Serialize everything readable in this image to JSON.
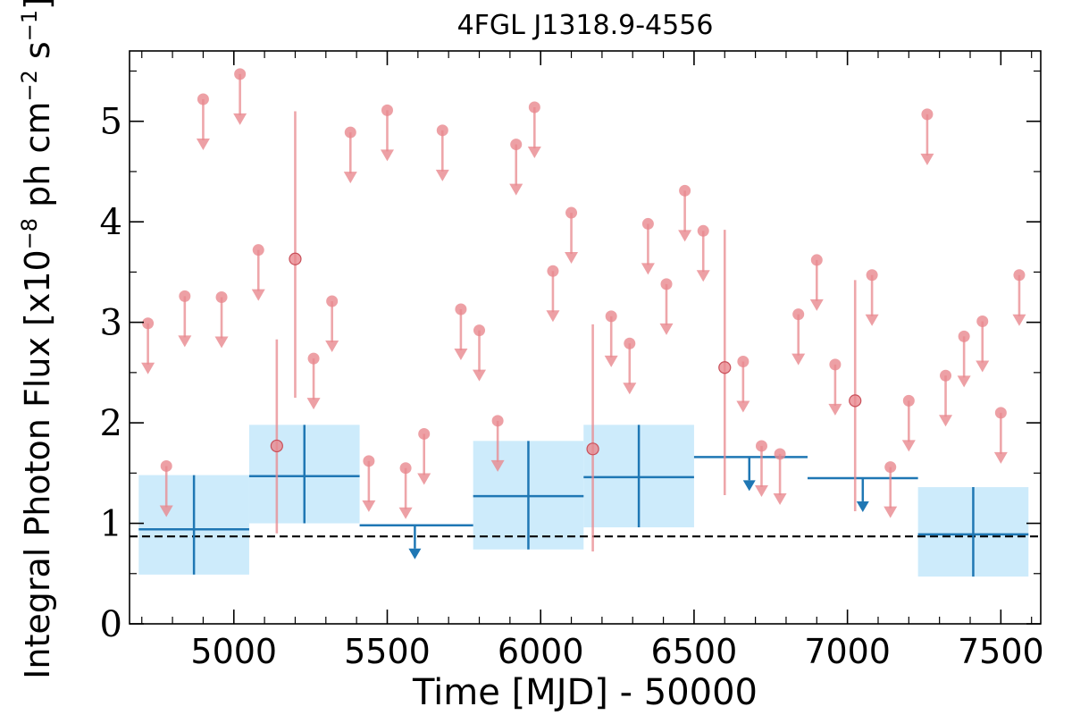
{
  "chart_data": {
    "type": "scatter",
    "title": "4FGL J1318.9-4556",
    "xlabel": "Time [MJD] - 50000",
    "ylabel": "Integral Photon Flux [x10",
    "ylabel_exp1": "−8",
    "ylabel_mid": " ph cm",
    "ylabel_exp2": "−2",
    "ylabel_mid2": " s",
    "ylabel_exp3": "−1",
    "ylabel_end": "]",
    "xlim": [
      4660,
      7630
    ],
    "ylim": [
      0,
      5.7
    ],
    "xticks": [
      5000,
      5500,
      6000,
      6500,
      7000,
      7500
    ],
    "yticks": [
      0,
      1,
      2,
      3,
      4,
      5
    ],
    "grid": false,
    "reference_line": {
      "y": 0.87,
      "style": "dashed",
      "color": "#000000"
    },
    "colors": {
      "short_bin": "#e8888e",
      "long_bin": "#1f77b4",
      "band": "#cdebfb"
    },
    "short_bin_detections": [
      {
        "x": 5140,
        "y": 1.77,
        "ylo": 0.9,
        "yhi": 2.83
      },
      {
        "x": 5200,
        "y": 3.63,
        "ylo": 2.25,
        "yhi": 5.1
      },
      {
        "x": 6170,
        "y": 1.74,
        "ylo": 0.72,
        "yhi": 2.98
      },
      {
        "x": 6600,
        "y": 2.55,
        "ylo": 1.28,
        "yhi": 3.92
      },
      {
        "x": 7025,
        "y": 2.22,
        "ylo": 1.12,
        "yhi": 3.42
      }
    ],
    "short_bin_upper_limits": [
      {
        "x": 4720,
        "y": 2.99
      },
      {
        "x": 4780,
        "y": 1.57
      },
      {
        "x": 4840,
        "y": 3.26
      },
      {
        "x": 4900,
        "y": 5.22
      },
      {
        "x": 4960,
        "y": 3.25
      },
      {
        "x": 5020,
        "y": 5.47
      },
      {
        "x": 5080,
        "y": 3.72
      },
      {
        "x": 5260,
        "y": 2.64
      },
      {
        "x": 5320,
        "y": 3.21
      },
      {
        "x": 5380,
        "y": 4.89
      },
      {
        "x": 5440,
        "y": 1.62
      },
      {
        "x": 5500,
        "y": 5.11
      },
      {
        "x": 5560,
        "y": 1.55
      },
      {
        "x": 5620,
        "y": 1.89
      },
      {
        "x": 5680,
        "y": 4.91
      },
      {
        "x": 5740,
        "y": 3.13
      },
      {
        "x": 5800,
        "y": 2.92
      },
      {
        "x": 5860,
        "y": 2.02
      },
      {
        "x": 5920,
        "y": 4.77
      },
      {
        "x": 5980,
        "y": 5.14
      },
      {
        "x": 6040,
        "y": 3.51
      },
      {
        "x": 6100,
        "y": 4.09
      },
      {
        "x": 6230,
        "y": 3.06
      },
      {
        "x": 6290,
        "y": 2.79
      },
      {
        "x": 6350,
        "y": 3.98
      },
      {
        "x": 6410,
        "y": 3.38
      },
      {
        "x": 6470,
        "y": 4.31
      },
      {
        "x": 6530,
        "y": 3.91
      },
      {
        "x": 6660,
        "y": 2.61
      },
      {
        "x": 6720,
        "y": 1.77
      },
      {
        "x": 6780,
        "y": 1.69
      },
      {
        "x": 6840,
        "y": 3.08
      },
      {
        "x": 6900,
        "y": 3.62
      },
      {
        "x": 6960,
        "y": 2.58
      },
      {
        "x": 7080,
        "y": 3.47
      },
      {
        "x": 7140,
        "y": 1.56
      },
      {
        "x": 7200,
        "y": 2.22
      },
      {
        "x": 7260,
        "y": 5.07
      },
      {
        "x": 7320,
        "y": 2.47
      },
      {
        "x": 7380,
        "y": 2.86
      },
      {
        "x": 7440,
        "y": 3.01
      },
      {
        "x": 7500,
        "y": 2.1
      },
      {
        "x": 7560,
        "y": 3.47
      }
    ],
    "long_bin_detections": [
      {
        "x0": 4690,
        "x1": 5050,
        "y": 0.94,
        "ylo": 0.49,
        "yhi": 1.48,
        "xc": 4870
      },
      {
        "x0": 5050,
        "x1": 5410,
        "y": 1.47,
        "ylo": 1.0,
        "yhi": 1.98,
        "xc": 5230
      },
      {
        "x0": 5780,
        "x1": 6140,
        "y": 1.27,
        "ylo": 0.74,
        "yhi": 1.82,
        "xc": 5960
      },
      {
        "x0": 6140,
        "x1": 6500,
        "y": 1.46,
        "ylo": 0.96,
        "yhi": 1.98,
        "xc": 6320
      },
      {
        "x0": 7230,
        "x1": 7590,
        "y": 0.89,
        "ylo": 0.47,
        "yhi": 1.36,
        "xc": 7410
      }
    ],
    "long_bin_upper_limits": [
      {
        "x0": 5410,
        "x1": 5780,
        "y": 0.98,
        "xc": 5590
      },
      {
        "x0": 6500,
        "x1": 6870,
        "y": 1.66,
        "xc": 6680
      },
      {
        "x0": 6870,
        "x1": 7230,
        "y": 1.45,
        "xc": 7050
      }
    ]
  }
}
